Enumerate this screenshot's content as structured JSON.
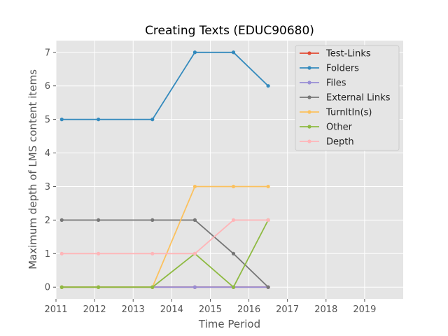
{
  "chart_data": {
    "type": "line",
    "title": "Creating Texts (EDUC90680)",
    "xlabel": "Time Period",
    "ylabel": "Maximum depth of LMS content items",
    "xlim": [
      2011,
      2020
    ],
    "ylim": [
      -0.35,
      7.35
    ],
    "xticks": [
      2011,
      2012,
      2013,
      2014,
      2015,
      2016,
      2017,
      2018,
      2019
    ],
    "yticks": [
      0,
      1,
      2,
      3,
      4,
      5,
      6,
      7
    ],
    "grid": true,
    "legend_position": "top-right",
    "series": [
      {
        "name": "Test-Links",
        "color": "#E24A33",
        "x": [
          2011.15,
          2012.1,
          2013.5,
          2014.6,
          2015.6,
          2016.5
        ],
        "y": [
          0,
          0,
          0,
          0,
          0,
          0
        ]
      },
      {
        "name": "Folders",
        "color": "#348ABD",
        "x": [
          2011.15,
          2012.1,
          2013.5,
          2014.6,
          2015.6,
          2016.5
        ],
        "y": [
          5,
          5,
          5,
          7,
          7,
          6
        ]
      },
      {
        "name": "Files",
        "color": "#988ED5",
        "x": [
          2011.15,
          2012.1,
          2013.5,
          2014.6,
          2015.6,
          2016.5
        ],
        "y": [
          0,
          0,
          0,
          0,
          0,
          0
        ]
      },
      {
        "name": "External Links",
        "color": "#777777",
        "x": [
          2011.15,
          2012.1,
          2013.5,
          2014.6,
          2015.6,
          2016.5
        ],
        "y": [
          2,
          2,
          2,
          2,
          1,
          0
        ]
      },
      {
        "name": "TurnItIn(s)",
        "color": "#FBC15E",
        "x": [
          2011.15,
          2012.1,
          2013.5,
          2014.6,
          2015.6,
          2016.5
        ],
        "y": [
          0,
          0,
          0,
          3,
          3,
          3
        ]
      },
      {
        "name": "Other",
        "color": "#8EBA42",
        "x": [
          2011.15,
          2012.1,
          2013.5,
          2014.6,
          2015.6,
          2016.5
        ],
        "y": [
          0,
          0,
          0,
          1,
          0,
          2
        ]
      },
      {
        "name": "Depth",
        "color": "#FFB5B8",
        "x": [
          2011.15,
          2012.1,
          2013.5,
          2014.6,
          2015.6,
          2016.5
        ],
        "y": [
          1,
          1,
          1,
          1,
          2,
          2
        ]
      }
    ]
  }
}
